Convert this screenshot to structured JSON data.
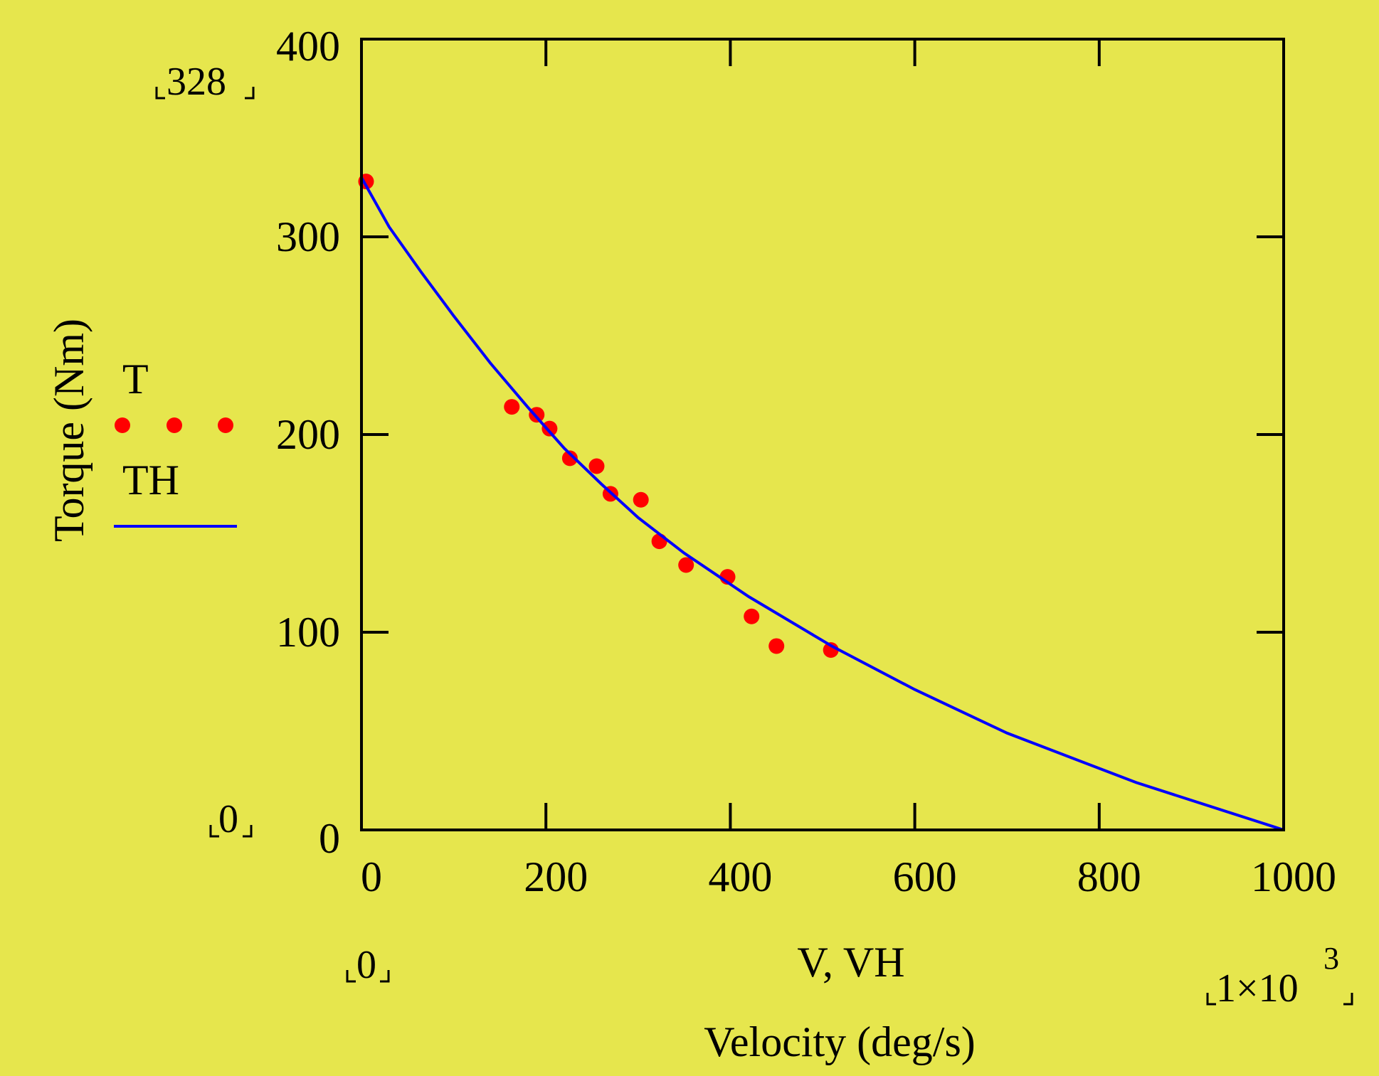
{
  "chart_data": {
    "type": "scatter",
    "title": "",
    "xlabel": "Velocity (deg/s)",
    "ylabel": "Torque (Nm)",
    "x_var_label": "V, VH",
    "xlim": [
      0,
      1000
    ],
    "ylim": [
      0,
      400
    ],
    "x_ticks": [
      0,
      200,
      400,
      600,
      800,
      1000
    ],
    "y_ticks": [
      0,
      100,
      200,
      300,
      400
    ],
    "x_tick_labels": [
      "0",
      "200",
      "400",
      "600",
      "800",
      "1000"
    ],
    "y_tick_labels": [
      "0",
      "100",
      "200",
      "300",
      "400"
    ],
    "y_range_marks": {
      "min": "0",
      "max": "328"
    },
    "x_range_marks": {
      "min": "0",
      "max_mantissa": "1×10",
      "max_exponent": "3"
    },
    "grid": false,
    "legend_position": "left",
    "series": [
      {
        "name": "T",
        "kind": "points",
        "color": "#FF0000",
        "x": [
          5,
          163,
          190,
          204,
          226,
          255,
          270,
          303,
          323,
          352,
          397,
          423,
          450,
          509
        ],
        "y": [
          328,
          214,
          210,
          203,
          188,
          184,
          170,
          167,
          146,
          134,
          128,
          108,
          93,
          91
        ]
      },
      {
        "name": "TH",
        "kind": "line",
        "color": "#0000FF",
        "x": [
          0,
          30,
          65,
          100,
          140,
          180,
          220,
          260,
          300,
          350,
          420,
          510,
          600,
          700,
          840,
          1000
        ],
        "y": [
          330,
          305,
          282,
          260,
          236,
          214,
          193,
          175,
          158,
          140,
          118,
          93,
          71,
          49,
          24,
          0
        ]
      }
    ]
  }
}
